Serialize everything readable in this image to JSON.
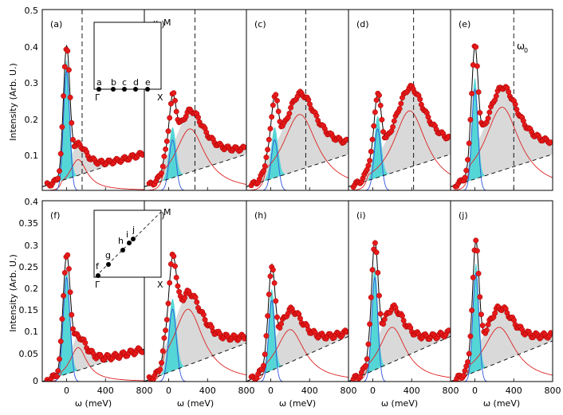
{
  "figure": {
    "xlabel": "ω (meV)",
    "ylabel": "Intensity (Arb. U.)",
    "xlim": [
      -250,
      800
    ],
    "top_ylim": [
      0,
      0.5
    ],
    "bottom_ylim": [
      0,
      0.4
    ],
    "top_yticks": [
      "0",
      "0.1",
      "0.2",
      "0.3",
      "0.4",
      "0.5"
    ],
    "bottom_yticks": [
      "0",
      "0.05",
      "0.1",
      "0.15",
      "0.2",
      "0.25",
      "0.3",
      "0.35",
      "0.4"
    ],
    "xticks": [
      "0",
      "400",
      "800"
    ],
    "colors": {
      "data_points": "#e8191a",
      "data_edge": "#9b0000",
      "fit_line": "#000000",
      "sharp_peak_fill": "#55d6d6",
      "sharp_peak_line": "#3355dd",
      "broad_peak_fill": "#d9d9d9",
      "broad_peak_line": "#dd2222",
      "background_line": "#000000"
    },
    "annotation": "ω",
    "annotation_sub": "0",
    "inset_top": {
      "labels": [
        "M",
        "Γ",
        "X"
      ],
      "points": [
        "a",
        "b",
        "c",
        "d",
        "e"
      ]
    },
    "inset_bottom": {
      "labels": [
        "M",
        "Γ",
        "X"
      ],
      "points": [
        "f",
        "g",
        "h",
        "i",
        "j"
      ]
    }
  },
  "chart_data": [
    {
      "panel": "(a)",
      "type": "scatter",
      "title": "(a)",
      "xlim": [
        -250,
        800
      ],
      "ylim": [
        0,
        0.5
      ],
      "omega0": 160,
      "peak1": {
        "center": 0,
        "amp": 0.33,
        "width": 45
      },
      "peak2": {
        "center": 120,
        "amp": 0.085,
        "width": 110
      },
      "background": {
        "start": 0.01,
        "end": 0.1
      }
    },
    {
      "panel": "(b)",
      "type": "scatter",
      "title": "(b)",
      "xlim": [
        -250,
        800
      ],
      "ylim": [
        0,
        0.5
      ],
      "omega0": 270,
      "peak1": {
        "center": 40,
        "amp": 0.14,
        "width": 50
      },
      "peak2": {
        "center": 220,
        "amp": 0.17,
        "width": 190
      },
      "background": {
        "start": 0.01,
        "end": 0.1
      }
    },
    {
      "panel": "(c)",
      "type": "scatter",
      "title": "(c)",
      "xlim": [
        -250,
        800
      ],
      "ylim": [
        0,
        0.5
      ],
      "omega0": 360,
      "peak1": {
        "center": 40,
        "amp": 0.14,
        "width": 50
      },
      "peak2": {
        "center": 300,
        "amp": 0.21,
        "width": 220
      },
      "background": {
        "start": 0.01,
        "end": 0.1
      }
    },
    {
      "panel": "(d)",
      "type": "scatter",
      "title": "(d)",
      "xlim": [
        -250,
        800
      ],
      "ylim": [
        0,
        0.5
      ],
      "omega0": 420,
      "peak1": {
        "center": 50,
        "amp": 0.17,
        "width": 50
      },
      "peak2": {
        "center": 380,
        "amp": 0.22,
        "width": 210
      },
      "background": {
        "start": 0.01,
        "end": 0.1
      }
    },
    {
      "panel": "(e)",
      "type": "scatter",
      "title": "(e)",
      "xlim": [
        -250,
        800
      ],
      "ylim": [
        0,
        0.5
      ],
      "omega0": 400,
      "peak1": {
        "center": 0,
        "amp": 0.28,
        "width": 45
      },
      "peak2": {
        "center": 280,
        "amp": 0.23,
        "width": 220
      },
      "background": {
        "start": 0.01,
        "end": 0.1
      }
    },
    {
      "panel": "(f)",
      "type": "scatter",
      "title": "(f)",
      "xlim": [
        -250,
        800
      ],
      "ylim": [
        0,
        0.4
      ],
      "peak1": {
        "center": 0,
        "amp": 0.23,
        "width": 50
      },
      "peak2": {
        "center": 120,
        "amp": 0.075,
        "width": 110
      },
      "background": {
        "start": 0.0,
        "end": 0.07
      }
    },
    {
      "panel": "(g)",
      "type": "scatter",
      "title": "(g)",
      "xlim": [
        -250,
        800
      ],
      "ylim": [
        0,
        0.4
      ],
      "peak1": {
        "center": 40,
        "amp": 0.16,
        "width": 55
      },
      "peak2": {
        "center": 200,
        "amp": 0.16,
        "width": 190
      },
      "background": {
        "start": 0.0,
        "end": 0.085
      }
    },
    {
      "panel": "(h)",
      "type": "scatter",
      "title": "(h)",
      "xlim": [
        -250,
        800
      ],
      "ylim": [
        0,
        0.4
      ],
      "peak1": {
        "center": 10,
        "amp": 0.18,
        "width": 45
      },
      "peak2": {
        "center": 200,
        "amp": 0.115,
        "width": 180
      },
      "background": {
        "start": 0.0,
        "end": 0.1
      }
    },
    {
      "panel": "(i)",
      "type": "scatter",
      "title": "(i)",
      "xlim": [
        -250,
        800
      ],
      "ylim": [
        0,
        0.4
      ],
      "peak1": {
        "center": 20,
        "amp": 0.23,
        "width": 45
      },
      "peak2": {
        "center": 200,
        "amp": 0.12,
        "width": 170
      },
      "background": {
        "start": 0.0,
        "end": 0.1
      }
    },
    {
      "panel": "(j)",
      "type": "scatter",
      "title": "(j)",
      "xlim": [
        -250,
        800
      ],
      "ylim": [
        0,
        0.4
      ],
      "peak1": {
        "center": 10,
        "amp": 0.24,
        "width": 45
      },
      "peak2": {
        "center": 250,
        "amp": 0.12,
        "width": 200
      },
      "background": {
        "start": 0.0,
        "end": 0.09
      }
    }
  ]
}
